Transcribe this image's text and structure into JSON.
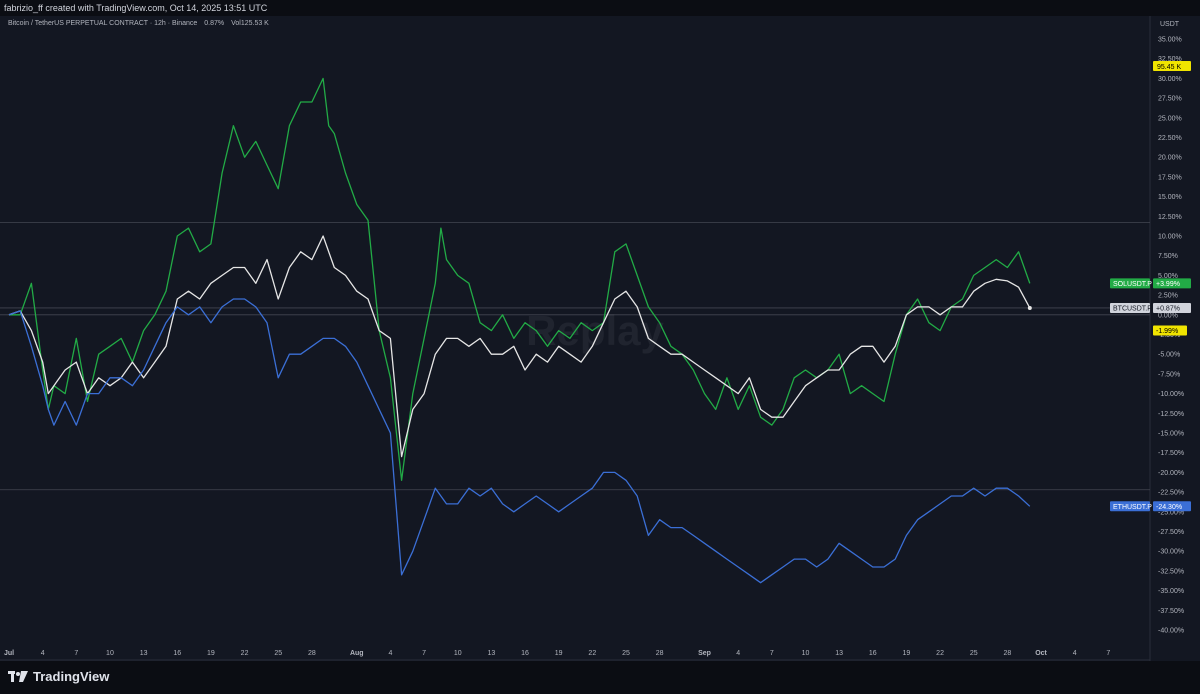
{
  "header": {
    "caption": "fabrizio_ff created with TradingView.com, Oct 14, 2025 13:51 UTC"
  },
  "symbol": {
    "name": "Bitcoin / TetherUS PERPETUAL CONTRACT · 12h · Binance",
    "change": "0.87%",
    "volume": "Vol125.53 K"
  },
  "price_axis": {
    "currency": "USDT",
    "last_price": "95.45 K",
    "last_price_color": "#f0e400"
  },
  "watermark": "Replay",
  "footer": {
    "brand": "TradingView"
  },
  "colors": {
    "background": "#131722",
    "grid": "#2a2e39",
    "sol": "#22ab46",
    "btc": "#e6e6e6",
    "eth": "#3b6fd6",
    "neg_tag": "#f0e400"
  },
  "chart_data": {
    "type": "line",
    "title": "",
    "ylabel": "",
    "xlabel": "",
    "y_unit": "%",
    "ylim": [
      -40,
      35
    ],
    "y_ticks": [
      "35.00%",
      "32.50%",
      "30.00%",
      "27.50%",
      "25.00%",
      "22.50%",
      "20.00%",
      "17.50%",
      "15.00%",
      "12.50%",
      "10.00%",
      "7.50%",
      "5.00%",
      "2.50%",
      "0.00%",
      "-2.50%",
      "-5.00%",
      "-7.50%",
      "-10.00%",
      "-12.50%",
      "-15.00%",
      "-17.50%",
      "-20.00%",
      "-22.50%",
      "-25.00%",
      "-27.50%",
      "-30.00%",
      "-32.50%",
      "-35.00%",
      "-37.50%",
      "-40.00%"
    ],
    "x_ticks": [
      {
        "label": "Jul",
        "day": 0
      },
      {
        "label": "4",
        "day": 3
      },
      {
        "label": "7",
        "day": 6
      },
      {
        "label": "10",
        "day": 9
      },
      {
        "label": "13",
        "day": 12
      },
      {
        "label": "16",
        "day": 15
      },
      {
        "label": "19",
        "day": 18
      },
      {
        "label": "22",
        "day": 21
      },
      {
        "label": "25",
        "day": 24
      },
      {
        "label": "28",
        "day": 27
      },
      {
        "label": "Aug",
        "day": 31
      },
      {
        "label": "4",
        "day": 34
      },
      {
        "label": "7",
        "day": 37
      },
      {
        "label": "10",
        "day": 40
      },
      {
        "label": "13",
        "day": 43
      },
      {
        "label": "16",
        "day": 46
      },
      {
        "label": "19",
        "day": 49
      },
      {
        "label": "22",
        "day": 52
      },
      {
        "label": "25",
        "day": 55
      },
      {
        "label": "28",
        "day": 58
      },
      {
        "label": "Sep",
        "day": 62
      },
      {
        "label": "4",
        "day": 65
      },
      {
        "label": "7",
        "day": 68
      },
      {
        "label": "10",
        "day": 71
      },
      {
        "label": "13",
        "day": 74
      },
      {
        "label": "16",
        "day": 77
      },
      {
        "label": "19",
        "day": 80
      },
      {
        "label": "22",
        "day": 83
      },
      {
        "label": "25",
        "day": 86
      },
      {
        "label": "28",
        "day": 89
      },
      {
        "label": "Oct",
        "day": 92
      },
      {
        "label": "4",
        "day": 95
      },
      {
        "label": "7",
        "day": 98
      }
    ],
    "x_max_day": 101,
    "hlines": [
      11.7,
      0.87,
      0,
      -22.2
    ],
    "series": [
      {
        "name": "SOLUSDT.P",
        "tag": "+3.99%",
        "tag_value": 3.99,
        "color": "#22ab46",
        "points": [
          [
            0,
            0
          ],
          [
            1,
            0
          ],
          [
            2,
            4
          ],
          [
            3,
            -7
          ],
          [
            3.5,
            -12
          ],
          [
            4,
            -9
          ],
          [
            5,
            -10
          ],
          [
            6,
            -3
          ],
          [
            6.5,
            -7
          ],
          [
            7,
            -11
          ],
          [
            8,
            -5
          ],
          [
            9,
            -4
          ],
          [
            10,
            -3
          ],
          [
            11,
            -6
          ],
          [
            12,
            -2
          ],
          [
            13,
            0
          ],
          [
            14,
            3
          ],
          [
            15,
            10
          ],
          [
            16,
            11
          ],
          [
            17,
            8
          ],
          [
            18,
            9
          ],
          [
            19,
            18
          ],
          [
            20,
            24
          ],
          [
            21,
            20
          ],
          [
            22,
            22
          ],
          [
            23,
            19
          ],
          [
            24,
            16
          ],
          [
            25,
            24
          ],
          [
            26,
            27
          ],
          [
            27,
            27
          ],
          [
            28,
            30
          ],
          [
            28.5,
            24
          ],
          [
            29,
            23
          ],
          [
            30,
            18
          ],
          [
            31,
            14
          ],
          [
            32,
            12
          ],
          [
            33,
            -2
          ],
          [
            34,
            -8
          ],
          [
            35,
            -21
          ],
          [
            36,
            -10
          ],
          [
            37,
            -3
          ],
          [
            38,
            4
          ],
          [
            38.5,
            11
          ],
          [
            39,
            7
          ],
          [
            40,
            5
          ],
          [
            41,
            4
          ],
          [
            42,
            -1
          ],
          [
            43,
            -2
          ],
          [
            44,
            0
          ],
          [
            45,
            -3
          ],
          [
            46,
            -1
          ],
          [
            47,
            -2
          ],
          [
            48,
            -4
          ],
          [
            49,
            -2
          ],
          [
            50,
            -3
          ],
          [
            51,
            -1
          ],
          [
            52,
            -2
          ],
          [
            53,
            -1
          ],
          [
            54,
            8
          ],
          [
            55,
            9
          ],
          [
            56,
            5
          ],
          [
            57,
            1
          ],
          [
            58,
            -1
          ],
          [
            59,
            -4
          ],
          [
            60,
            -5
          ],
          [
            61,
            -7
          ],
          [
            62,
            -10
          ],
          [
            63,
            -12
          ],
          [
            64,
            -8
          ],
          [
            65,
            -12
          ],
          [
            66,
            -9
          ],
          [
            67,
            -13
          ],
          [
            68,
            -14
          ],
          [
            69,
            -12
          ],
          [
            70,
            -8
          ],
          [
            71,
            -7
          ],
          [
            72,
            -8
          ],
          [
            73,
            -7
          ],
          [
            74,
            -5
          ],
          [
            75,
            -10
          ],
          [
            76,
            -9
          ],
          [
            77,
            -10
          ],
          [
            78,
            -11
          ],
          [
            79,
            -5
          ],
          [
            80,
            0
          ],
          [
            81,
            2
          ],
          [
            82,
            -1
          ],
          [
            83,
            -2
          ],
          [
            84,
            1
          ],
          [
            85,
            2
          ],
          [
            86,
            5
          ],
          [
            87,
            6
          ],
          [
            88,
            7
          ],
          [
            89,
            6
          ],
          [
            90,
            8
          ],
          [
            91,
            3.99
          ]
        ]
      },
      {
        "name": "BTCUSDT.P",
        "tag": "+0.87%",
        "tag_value": 0.87,
        "color": "#e6e6e6",
        "points": [
          [
            0,
            0
          ],
          [
            1,
            0.5
          ],
          [
            2,
            -2
          ],
          [
            3,
            -6
          ],
          [
            3.5,
            -10
          ],
          [
            4,
            -9
          ],
          [
            5,
            -7
          ],
          [
            6,
            -6
          ],
          [
            7,
            -10
          ],
          [
            8,
            -8
          ],
          [
            9,
            -9
          ],
          [
            10,
            -8
          ],
          [
            11,
            -6
          ],
          [
            12,
            -8
          ],
          [
            13,
            -6
          ],
          [
            14,
            -4
          ],
          [
            15,
            2
          ],
          [
            16,
            3
          ],
          [
            17,
            2
          ],
          [
            18,
            4
          ],
          [
            19,
            5
          ],
          [
            20,
            6
          ],
          [
            21,
            6
          ],
          [
            22,
            4
          ],
          [
            23,
            7
          ],
          [
            24,
            2
          ],
          [
            25,
            6
          ],
          [
            26,
            8
          ],
          [
            27,
            7
          ],
          [
            28,
            10
          ],
          [
            29,
            6
          ],
          [
            30,
            5
          ],
          [
            31,
            3
          ],
          [
            32,
            2
          ],
          [
            33,
            -2
          ],
          [
            34,
            -3
          ],
          [
            35,
            -18
          ],
          [
            36,
            -12
          ],
          [
            37,
            -10
          ],
          [
            38,
            -5
          ],
          [
            39,
            -3
          ],
          [
            40,
            -3
          ],
          [
            41,
            -4
          ],
          [
            42,
            -3
          ],
          [
            43,
            -5
          ],
          [
            44,
            -5
          ],
          [
            45,
            -4
          ],
          [
            46,
            -7
          ],
          [
            47,
            -5
          ],
          [
            48,
            -6
          ],
          [
            49,
            -4
          ],
          [
            50,
            -5
          ],
          [
            51,
            -6
          ],
          [
            52,
            -4
          ],
          [
            53,
            -1
          ],
          [
            54,
            2
          ],
          [
            55,
            3
          ],
          [
            56,
            1
          ],
          [
            57,
            -3
          ],
          [
            58,
            -4
          ],
          [
            59,
            -5
          ],
          [
            60,
            -5
          ],
          [
            61,
            -6
          ],
          [
            62,
            -7
          ],
          [
            63,
            -8
          ],
          [
            64,
            -9
          ],
          [
            65,
            -10
          ],
          [
            66,
            -8
          ],
          [
            67,
            -12
          ],
          [
            68,
            -13
          ],
          [
            69,
            -13
          ],
          [
            70,
            -11
          ],
          [
            71,
            -9
          ],
          [
            72,
            -8
          ],
          [
            73,
            -7
          ],
          [
            74,
            -7
          ],
          [
            75,
            -5
          ],
          [
            76,
            -4
          ],
          [
            77,
            -4
          ],
          [
            78,
            -6
          ],
          [
            79,
            -4
          ],
          [
            80,
            0
          ],
          [
            81,
            1
          ],
          [
            82,
            1
          ],
          [
            83,
            0
          ],
          [
            84,
            1
          ],
          [
            85,
            1
          ],
          [
            86,
            3
          ],
          [
            87,
            4
          ],
          [
            88,
            4.5
          ],
          [
            89,
            4.3
          ],
          [
            90,
            3.5
          ],
          [
            91,
            0.87
          ]
        ]
      },
      {
        "name": "ETHUSDT.P",
        "tag": "-24.30%",
        "tag_value": -24.3,
        "color": "#3b6fd6",
        "points": [
          [
            0,
            0
          ],
          [
            1,
            0.5
          ],
          [
            2,
            -4
          ],
          [
            3,
            -9
          ],
          [
            3.5,
            -12
          ],
          [
            4,
            -14
          ],
          [
            5,
            -11
          ],
          [
            6,
            -14
          ],
          [
            7,
            -10
          ],
          [
            8,
            -10
          ],
          [
            9,
            -8
          ],
          [
            10,
            -8
          ],
          [
            11,
            -9
          ],
          [
            12,
            -7
          ],
          [
            13,
            -4
          ],
          [
            14,
            -1
          ],
          [
            15,
            1
          ],
          [
            16,
            0
          ],
          [
            17,
            1
          ],
          [
            18,
            -1
          ],
          [
            19,
            1
          ],
          [
            20,
            2
          ],
          [
            21,
            2
          ],
          [
            22,
            1
          ],
          [
            23,
            -1
          ],
          [
            24,
            -8
          ],
          [
            25,
            -5
          ],
          [
            26,
            -5
          ],
          [
            27,
            -4
          ],
          [
            28,
            -3
          ],
          [
            29,
            -3
          ],
          [
            30,
            -4
          ],
          [
            31,
            -6
          ],
          [
            32,
            -9
          ],
          [
            33,
            -12
          ],
          [
            34,
            -15
          ],
          [
            35,
            -33
          ],
          [
            36,
            -30
          ],
          [
            37,
            -26
          ],
          [
            38,
            -22
          ],
          [
            39,
            -24
          ],
          [
            40,
            -24
          ],
          [
            41,
            -22
          ],
          [
            42,
            -23
          ],
          [
            43,
            -22
          ],
          [
            44,
            -24
          ],
          [
            45,
            -25
          ],
          [
            46,
            -24
          ],
          [
            47,
            -23
          ],
          [
            48,
            -24
          ],
          [
            49,
            -25
          ],
          [
            50,
            -24
          ],
          [
            51,
            -23
          ],
          [
            52,
            -22
          ],
          [
            53,
            -20
          ],
          [
            54,
            -20
          ],
          [
            55,
            -21
          ],
          [
            56,
            -23
          ],
          [
            57,
            -28
          ],
          [
            58,
            -26
          ],
          [
            59,
            -27
          ],
          [
            60,
            -27
          ],
          [
            61,
            -28
          ],
          [
            62,
            -29
          ],
          [
            63,
            -30
          ],
          [
            64,
            -31
          ],
          [
            65,
            -32
          ],
          [
            66,
            -33
          ],
          [
            67,
            -34
          ],
          [
            68,
            -33
          ],
          [
            69,
            -32
          ],
          [
            70,
            -31
          ],
          [
            71,
            -31
          ],
          [
            72,
            -32
          ],
          [
            73,
            -31
          ],
          [
            74,
            -29
          ],
          [
            75,
            -30
          ],
          [
            76,
            -31
          ],
          [
            77,
            -32
          ],
          [
            78,
            -32
          ],
          [
            79,
            -31
          ],
          [
            80,
            -28
          ],
          [
            81,
            -26
          ],
          [
            82,
            -25
          ],
          [
            83,
            -24
          ],
          [
            84,
            -23
          ],
          [
            85,
            -23
          ],
          [
            86,
            -22
          ],
          [
            87,
            -23
          ],
          [
            88,
            -22
          ],
          [
            89,
            -22
          ],
          [
            90,
            -23
          ],
          [
            91,
            -24.3
          ]
        ]
      }
    ],
    "extra_tags": [
      {
        "tag": "-1.99%",
        "value": -1.99,
        "color": "#f0e400"
      }
    ]
  }
}
